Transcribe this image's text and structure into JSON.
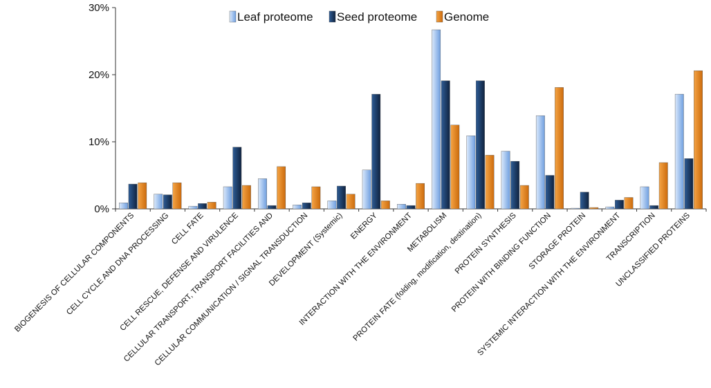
{
  "chart_data": {
    "type": "bar",
    "title": "",
    "xlabel": "",
    "ylabel": "",
    "ylim": [
      0,
      30
    ],
    "yticks": [
      0,
      10,
      20,
      30
    ],
    "ytick_labels": [
      "0%",
      "10%",
      "20%",
      "30%"
    ],
    "grid": false,
    "legend_position": "top-center",
    "categories": [
      "BIOGENESIS OF CELLULAR COMPONENTS",
      "CELL CYCLE AND DNA PROCESSING",
      "CELL FATE",
      "CELL RESCUE, DEFENSE AND VIRULENCE",
      "CELLULAR TRANSPORT, TRANSPORT FACILITIES AND",
      "CELLULAR COMMUNICATION / SIGNAL TRANSDUCTION",
      "DEVELOPMENT (Systemic)",
      "ENERGY",
      "INTERACTION WITH THE ENVIRONMENT",
      "METABOLISM",
      "PROTEIN FATE (folding, modification, destination)",
      "PROTEIN SYNTHESIS",
      "PROTEIN WITH BINDING FUNCTION",
      "STORAGE PROTEIN",
      "SYSTEMIC INTERACTION WITH THE ENVIRONMENT",
      "TRANSCRIPTION",
      "UNCLASSIFIED PROTEINS"
    ],
    "series": [
      {
        "name": "Leaf proteome",
        "color_light": "#dbe9fb",
        "color_dark": "#6f9fe0",
        "values": [
          0.9,
          2.2,
          0.4,
          3.3,
          4.5,
          0.6,
          1.2,
          5.8,
          0.7,
          26.7,
          10.9,
          8.6,
          13.9,
          0.1,
          0.3,
          3.3,
          17.1
        ]
      },
      {
        "name": "Seed proteome",
        "color_light": "#2e5c95",
        "color_dark": "#10233f",
        "values": [
          3.7,
          2.1,
          0.8,
          9.2,
          0.5,
          0.9,
          3.4,
          17.1,
          0.5,
          19.1,
          19.1,
          7.1,
          5.0,
          2.5,
          1.3,
          0.5,
          7.5
        ]
      },
      {
        "name": "Genome",
        "color_light": "#f5a445",
        "color_dark": "#cc6b0c",
        "values": [
          3.9,
          3.9,
          1.0,
          3.5,
          6.3,
          3.3,
          2.2,
          1.2,
          3.8,
          12.5,
          8.0,
          3.5,
          18.1,
          0.2,
          1.7,
          6.9,
          20.6
        ]
      }
    ]
  }
}
